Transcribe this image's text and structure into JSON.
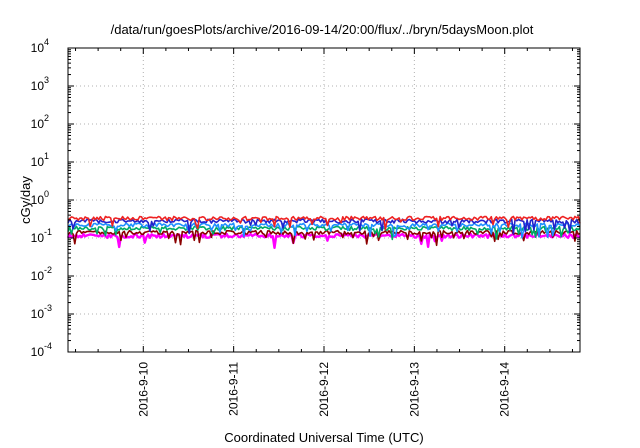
{
  "chart_data": {
    "type": "line",
    "title": "/data/run/goesPlots/archive/2016-09-14/20:00/flux/../bryn/5daysMoon.plot",
    "xlabel": "Coordinated Universal Time (UTC)",
    "ylabel": "cGy/day",
    "yscale": "log",
    "ylim": [
      0.0001,
      10000
    ],
    "xlim": [
      "2016-09-09 04:00",
      "2016-09-14 20:00"
    ],
    "x_ticks": [
      "2016-9-10",
      "2016-9-11",
      "2016-9-12",
      "2016-9-13",
      "2016-9-14"
    ],
    "y_ticks": [
      {
        "base": "10",
        "exp": "-4"
      },
      {
        "base": "10",
        "exp": "-3"
      },
      {
        "base": "10",
        "exp": "-2"
      },
      {
        "base": "10",
        "exp": "-1"
      },
      {
        "base": "10",
        "exp": "0"
      },
      {
        "base": "10",
        "exp": "1"
      },
      {
        "base": "10",
        "exp": "2"
      },
      {
        "base": "10",
        "exp": "3"
      },
      {
        "base": "10",
        "exp": "4"
      }
    ],
    "grid": true,
    "series": [
      {
        "color": "#ff00ff",
        "baseline": 0.115,
        "spike_min": 0.03
      },
      {
        "color": "#8b0000",
        "baseline": 0.14,
        "spike_min": 0.07
      },
      {
        "color": "#00aa66",
        "baseline": 0.18,
        "spike_min": 0.1
      },
      {
        "color": "#1e90ff",
        "baseline": 0.22,
        "spike_min": 0.12
      },
      {
        "color": "#2222cc",
        "baseline": 0.28,
        "spike_min": 0.14
      },
      {
        "color": "#ee2222",
        "baseline": 0.33,
        "spike_min": 0.18
      }
    ]
  }
}
